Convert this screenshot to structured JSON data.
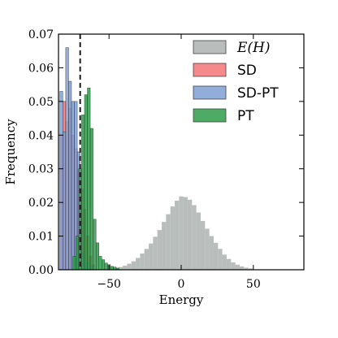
{
  "chart_data": {
    "type": "histogram",
    "xlabel": "Energy",
    "ylabel": "Frequency",
    "xlim": [
      -85,
      85
    ],
    "ylim": [
      0,
      0.07
    ],
    "x_ticks": [
      {
        "value": -50,
        "label": "−50"
      },
      {
        "value": 0,
        "label": "0"
      },
      {
        "value": 50,
        "label": "50"
      }
    ],
    "y_ticks": [
      {
        "value": 0.0,
        "label": "0.00"
      },
      {
        "value": 0.01,
        "label": "0.01"
      },
      {
        "value": 0.02,
        "label": "0.02"
      },
      {
        "value": 0.03,
        "label": "0.03"
      },
      {
        "value": 0.04,
        "label": "0.04"
      },
      {
        "value": 0.05,
        "label": "0.05"
      },
      {
        "value": 0.06,
        "label": "0.06"
      },
      {
        "value": 0.07,
        "label": "0.07"
      }
    ],
    "reference_line": {
      "x": -70,
      "style": "dashed",
      "color": "#000000"
    },
    "legend_position": "top-right",
    "series": [
      {
        "name": "E(H)",
        "color": "#a8aeab",
        "bin_width": 3,
        "bins": [
          {
            "x": -45,
            "y": 0.0005
          },
          {
            "x": -42,
            "y": 0.0008
          },
          {
            "x": -39,
            "y": 0.0012
          },
          {
            "x": -36,
            "y": 0.0018
          },
          {
            "x": -33,
            "y": 0.0025
          },
          {
            "x": -30,
            "y": 0.0035
          },
          {
            "x": -27,
            "y": 0.0048
          },
          {
            "x": -24,
            "y": 0.0062
          },
          {
            "x": -21,
            "y": 0.0078
          },
          {
            "x": -18,
            "y": 0.0098
          },
          {
            "x": -15,
            "y": 0.0118
          },
          {
            "x": -12,
            "y": 0.0142
          },
          {
            "x": -9,
            "y": 0.0165
          },
          {
            "x": -6,
            "y": 0.0188
          },
          {
            "x": -3,
            "y": 0.0205
          },
          {
            "x": 0,
            "y": 0.0218
          },
          {
            "x": 3,
            "y": 0.0216
          },
          {
            "x": 6,
            "y": 0.0208
          },
          {
            "x": 9,
            "y": 0.0192
          },
          {
            "x": 12,
            "y": 0.017
          },
          {
            "x": 15,
            "y": 0.0145
          },
          {
            "x": 18,
            "y": 0.0122
          },
          {
            "x": 21,
            "y": 0.01
          },
          {
            "x": 24,
            "y": 0.008
          },
          {
            "x": 27,
            "y": 0.0062
          },
          {
            "x": 30,
            "y": 0.0045
          },
          {
            "x": 33,
            "y": 0.0032
          },
          {
            "x": 36,
            "y": 0.0022
          },
          {
            "x": 39,
            "y": 0.0015
          },
          {
            "x": 42,
            "y": 0.001
          },
          {
            "x": 45,
            "y": 0.0006
          },
          {
            "x": 48,
            "y": 0.0004
          }
        ]
      },
      {
        "name": "SD",
        "color": "#f47478",
        "bin_width": 2,
        "bins": [
          {
            "x": -83,
            "y": 0.04
          },
          {
            "x": -81,
            "y": 0.05
          },
          {
            "x": -79,
            "y": 0.044
          },
          {
            "x": -77,
            "y": 0.048
          },
          {
            "x": -75,
            "y": 0.04
          },
          {
            "x": -73,
            "y": 0.036
          },
          {
            "x": -71,
            "y": 0.03
          },
          {
            "x": -69,
            "y": 0.024
          },
          {
            "x": -67,
            "y": 0.018
          },
          {
            "x": -65,
            "y": 0.01
          },
          {
            "x": -63,
            "y": 0.004
          },
          {
            "x": -61,
            "y": 0.0015
          }
        ]
      },
      {
        "name": "SD-PT",
        "color": "#7e9fd2",
        "bin_width": 2,
        "bins": [
          {
            "x": -83,
            "y": 0.053
          },
          {
            "x": -81,
            "y": 0.041
          },
          {
            "x": -79,
            "y": 0.066
          },
          {
            "x": -77,
            "y": 0.056
          },
          {
            "x": -75,
            "y": 0.05
          },
          {
            "x": -73,
            "y": 0.05
          },
          {
            "x": -71,
            "y": 0.035
          },
          {
            "x": -69,
            "y": 0.015
          },
          {
            "x": -67,
            "y": 0.005
          },
          {
            "x": -65,
            "y": 0.002
          },
          {
            "x": -63,
            "y": 0.001
          }
        ]
      },
      {
        "name": "PT",
        "color": "#2e9c4a",
        "bin_width": 2,
        "bins": [
          {
            "x": -74,
            "y": 0.004
          },
          {
            "x": -72,
            "y": 0.01
          },
          {
            "x": -70,
            "y": 0.03
          },
          {
            "x": -68,
            "y": 0.046
          },
          {
            "x": -66,
            "y": 0.052
          },
          {
            "x": -64,
            "y": 0.054
          },
          {
            "x": -62,
            "y": 0.042
          },
          {
            "x": -60,
            "y": 0.015
          },
          {
            "x": -58,
            "y": 0.008
          },
          {
            "x": -56,
            "y": 0.004
          },
          {
            "x": -54,
            "y": 0.003
          },
          {
            "x": -52,
            "y": 0.002
          },
          {
            "x": -50,
            "y": 0.0015
          },
          {
            "x": -48,
            "y": 0.001
          },
          {
            "x": -46,
            "y": 0.0008
          },
          {
            "x": -44,
            "y": 0.0005
          }
        ]
      }
    ]
  }
}
